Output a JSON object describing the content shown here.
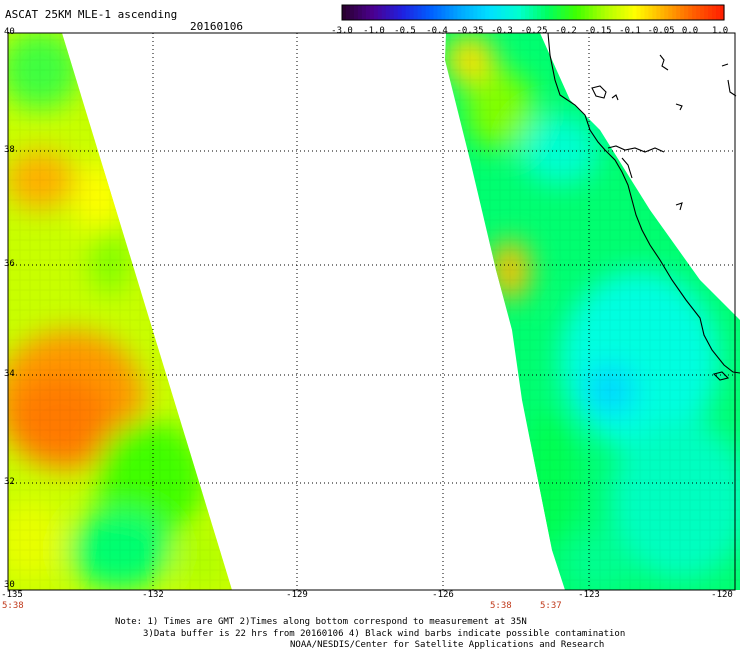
{
  "header": {
    "title": "ASCAT 25KM MLE-1 ascending",
    "date": "20160106"
  },
  "colorbar": {
    "labels": [
      "-3.0",
      "-1.0",
      "-0.5",
      "-0.4",
      "-0.35",
      "-0.3",
      "-0.25",
      "-0.2",
      "-0.15",
      "-0.1",
      "-0.05",
      "0.0",
      "1.0"
    ],
    "colors": [
      "#2a0030",
      "#4b0090",
      "#2020e0",
      "#0060ff",
      "#00a8ff",
      "#00e0ff",
      "#00ffd0",
      "#00ff60",
      "#40ff00",
      "#b0ff00",
      "#ffff00",
      "#ffb000",
      "#ff6000",
      "#ff2000"
    ]
  },
  "axes": {
    "lat_labels": [
      "40",
      "38",
      "36",
      "34",
      "32",
      "30"
    ],
    "lon_labels": [
      "-135",
      "-132",
      "-129",
      "-126",
      "-123",
      "-120"
    ],
    "lat_range": [
      30,
      40
    ],
    "lon_range": [
      -135,
      -120
    ],
    "grid": "dotted"
  },
  "times": {
    "left": "5:38",
    "right_a": "5:38",
    "right_b": "5:37"
  },
  "footer": {
    "line1": "Note: 1) Times are GMT 2)Times along bottom correspond to measurement at 35N",
    "line2": "3)Data buffer is 22 hrs from 20160106 4) Black wind barbs indicate possible contamination",
    "line3": "NOAA/NESDIS/Center for Satellite Applications and Research"
  }
}
